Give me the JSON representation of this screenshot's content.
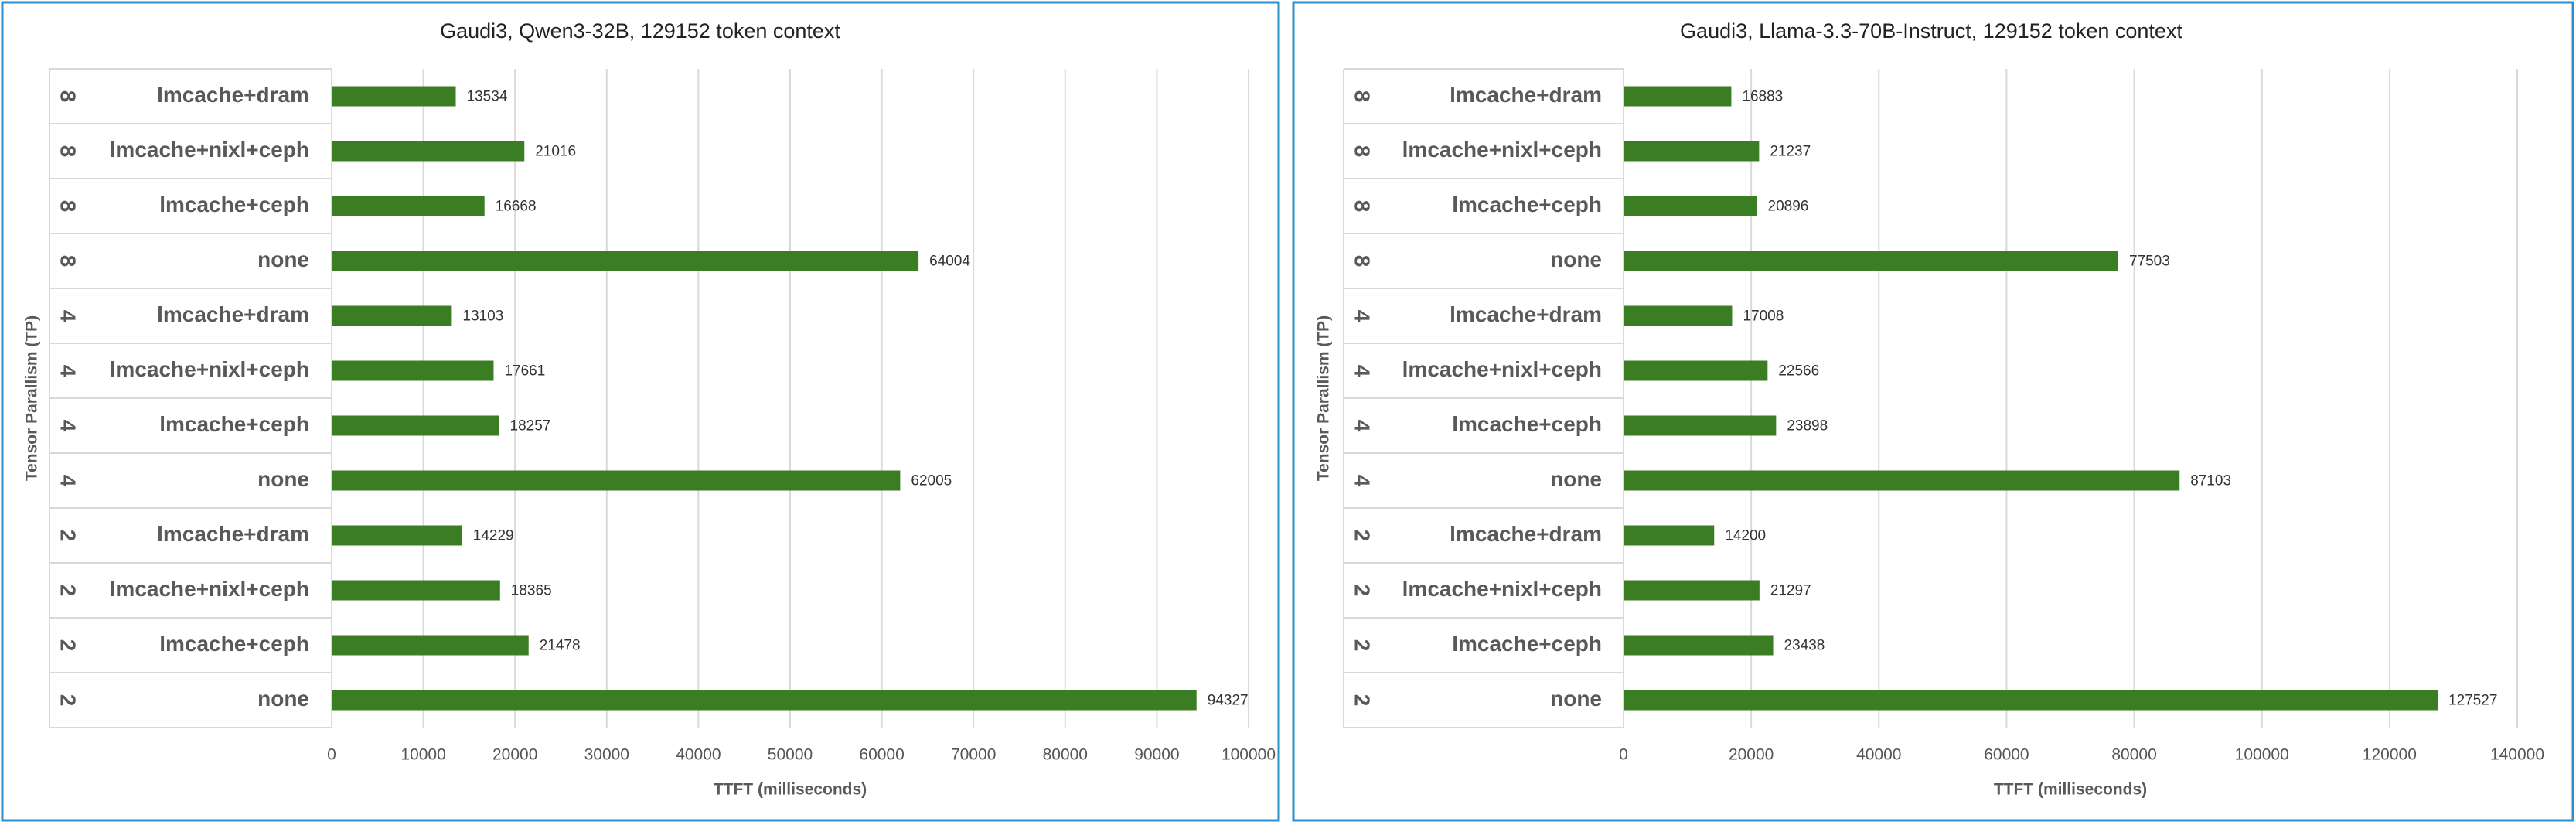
{
  "chart_data": [
    {
      "type": "bar",
      "title": "Gaudi3, Qwen3-32B, 129152 token context",
      "x_label": "TTFT (milliseconds)",
      "y_label": "Tensor Parallism (TP)",
      "groups": [
        8,
        8,
        8,
        8,
        4,
        4,
        4,
        4,
        2,
        2,
        2,
        2
      ],
      "categories": [
        "lmcache+dram",
        "lmcache+nixl+ceph",
        "lmcache+ceph",
        "none",
        "lmcache+dram",
        "lmcache+nixl+ceph",
        "lmcache+ceph",
        "none",
        "lmcache+dram",
        "lmcache+nixl+ceph",
        "lmcache+ceph",
        "none"
      ],
      "values": [
        13534,
        21016,
        16668,
        64004,
        13103,
        17661,
        18257,
        62005,
        14229,
        18365,
        21478,
        94327
      ],
      "color": "#3a7d22",
      "xlim": [
        0,
        100000
      ],
      "xticks": [
        0,
        10000,
        20000,
        30000,
        40000,
        50000,
        60000,
        70000,
        80000,
        90000,
        100000
      ],
      "grid": true
    },
    {
      "type": "bar",
      "title": "Gaudi3, Llama-3.3-70B-Instruct, 129152 token context",
      "x_label": "TTFT (milliseconds)",
      "y_label": "Tensor Parallism (TP)",
      "groups": [
        8,
        8,
        8,
        8,
        4,
        4,
        4,
        4,
        2,
        2,
        2,
        2
      ],
      "categories": [
        "lmcache+dram",
        "lmcache+nixl+ceph",
        "lmcache+ceph",
        "none",
        "lmcache+dram",
        "lmcache+nixl+ceph",
        "lmcache+ceph",
        "none",
        "lmcache+dram",
        "lmcache+nixl+ceph",
        "lmcache+ceph",
        "none"
      ],
      "values": [
        16883,
        21237,
        20896,
        77503,
        17008,
        22566,
        23898,
        87103,
        14200,
        21297,
        23438,
        127527
      ],
      "color": "#3a7d22",
      "xlim": [
        0,
        140000
      ],
      "xticks": [
        0,
        20000,
        40000,
        60000,
        80000,
        100000,
        120000,
        140000
      ],
      "grid": true
    }
  ]
}
